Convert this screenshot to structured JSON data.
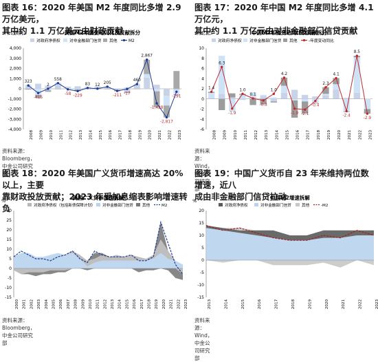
{
  "figures": [
    {
      "title_line1": "图表 16：2020 年美国 M2 年度同比多增 2.9 万亿美元，",
      "title_line2": "其中约 1.1 万亿美元由财政贡献",
      "source": "资料来源：Bloomberg，中金公司研究部"
    },
    {
      "title_line1": "图表 17：2020 年中国 M2 年度同比多增 4.1 万亿元，",
      "title_line2": "其中约 1.1 万亿元由对非金融部门信贷贡献",
      "source": "资料来源：Wind，中金公司研究部"
    },
    {
      "title_line1": "图表 18：2020 年美国广义货币增速高达 20%以上，主要",
      "title_line2": "靠财政投放贡献；2023 年受加息缩表影响增速转负",
      "source": "资料来源：Bloomberg，中金公司研究部"
    },
    {
      "title_line1": "图表 19：中国广义货币自 23 年来维持两位数增速，近八",
      "title_line2": "成由非金融部门信贷拉动",
      "source": "资料来源：Wind，中金公司研究部"
    }
  ],
  "chart_data": [
    {
      "type": "bar",
      "title": "美国M2年度变动同比及贡献拆分",
      "unit": "（十亿美元）",
      "categories": [
        "2008",
        "2009",
        "2010",
        "2011",
        "2012",
        "2013",
        "2014",
        "2015",
        "2016",
        "2017",
        "2018",
        "2019",
        "2020",
        "2021",
        "2022",
        "2023"
      ],
      "series": [
        {
          "name": "对政府净债权",
          "values": [
            250,
            500,
            300,
            350,
            80,
            250,
            100,
            200,
            180,
            -100,
            -300,
            450,
            1100,
            400,
            -700,
            -150
          ]
        },
        {
          "name": "对非金融部门信贷",
          "values": [
            150,
            -600,
            -150,
            250,
            100,
            -50,
            100,
            50,
            30,
            0,
            150,
            50,
            350,
            -250,
            -950,
            -600
          ]
        },
        {
          "name": "其他",
          "values": [
            -80,
            -310,
            -148,
            -42,
            0,
            -200,
            -37,
            -45,
            -47,
            -150,
            -119,
            -40,
            1417,
            -1578,
            -1167,
            1750
          ]
        },
        {
          "name": "M2",
          "values": [
            323,
            -415,
            2,
            558,
            -58,
            -229,
            83,
            12,
            205,
            -211,
            -17,
            460,
            2867,
            -1428,
            -2817,
            -291
          ]
        }
      ],
      "data_labels": [
        "323",
        "-415",
        "2",
        "558",
        "-58",
        "-229",
        "83",
        "12",
        "205",
        "-211",
        "-17",
        "460",
        "2,867",
        "-1,428",
        "-2,817",
        "-291"
      ],
      "ylim": [
        -4000,
        4000
      ],
      "yticks": [
        "4,000",
        "3,000",
        "2,000",
        "1,000",
        "0",
        "-1,000",
        "-2,000",
        "-3,000",
        "-4,000"
      ],
      "colors": {
        "gov": "#c8d3e8",
        "credit": "#cfe3f7",
        "other": "#a8a8a8",
        "m2": "#1f3a93"
      },
      "grid": false,
      "legend": "top"
    },
    {
      "type": "bar",
      "title": "中国M2年度变动同比及贡献拆分",
      "unit": "（万亿元）",
      "categories": [
        "2008",
        "2009",
        "2010",
        "2011",
        "2012",
        "2013",
        "2014",
        "2015",
        "2016",
        "2017",
        "2018",
        "2019",
        "2020",
        "2021",
        "2022",
        "2023"
      ],
      "series": [
        {
          "name": "对政府净债权",
          "values": [
            0.2,
            1.0,
            0.3,
            -0.2,
            0.4,
            0.6,
            -0.5,
            1.2,
            1.8,
            0.8,
            0.5,
            0.7,
            1.8,
            0.2,
            1.2,
            0.0
          ]
        },
        {
          "name": "对非金融部门信贷",
          "values": [
            1.0,
            7.5,
            -2.5,
            0.8,
            0.9,
            0.2,
            0.3,
            1.4,
            -0.3,
            -0.5,
            -0.8,
            0.3,
            1.1,
            -2.5,
            7.0,
            -2.0
          ]
        },
        {
          "name": "其他",
          "values": [
            0.2,
            -2.2,
            0.8,
            0.2,
            -1.2,
            -1.1,
            -0.2,
            1.6,
            -3.4,
            -2.4,
            -0.1,
            1.3,
            1.2,
            -0.1,
            0.3,
            -0.9
          ]
        },
        {
          "name": "-年度变动同比",
          "values": [
            1.4,
            6.3,
            -1.9,
            1.0,
            0.1,
            -0.3,
            1.0,
            4.2,
            -1.9,
            -2.1,
            -0.4,
            2.3,
            4.1,
            -2.4,
            8.5,
            -2.9
          ]
        }
      ],
      "data_labels": [
        "1.4",
        "6.3",
        "-1.9",
        "1.0",
        "0.1",
        "-0.3",
        "1.0",
        "4.2",
        "-1.9",
        "-2.1",
        "-0.4",
        "2.3",
        "4.1",
        "-2.4",
        "8.5",
        "-2.9"
      ],
      "ylim": [
        -6,
        10
      ],
      "yticks": [
        "10",
        "8",
        "6",
        "4",
        "2",
        "0",
        "-2",
        "-4",
        "-6"
      ],
      "colors": {
        "gov": "#c8d3e8",
        "credit": "#cfe3f7",
        "other": "#9c9c9c",
        "m2": "#c0282d"
      },
      "grid": false,
      "legend": "top"
    },
    {
      "type": "area",
      "title": "美国广义货币增速拆解",
      "unit": "%",
      "x_labels": [
        "2000",
        "2001",
        "2002",
        "2003",
        "2004",
        "2005",
        "2006",
        "2007",
        "2008",
        "2009",
        "2010",
        "2011",
        "2012",
        "2013",
        "2014",
        "2015",
        "2016",
        "2017",
        "2018",
        "2019",
        "2020",
        "2021",
        "2022",
        "2023"
      ],
      "series": [
        {
          "name": "对政府净债权（包括新债保障计划）",
          "values": [
            -1,
            -3,
            -2,
            -2,
            -2,
            -1,
            -1,
            -1,
            1,
            2,
            3,
            2,
            3,
            2,
            3,
            2,
            3,
            2,
            1,
            2,
            7,
            4,
            0,
            -3
          ]
        },
        {
          "name": "对非金融部门信贷",
          "values": [
            6,
            8,
            8,
            6,
            6,
            7,
            8,
            7,
            8,
            5,
            1,
            3,
            4,
            4,
            4,
            4,
            4,
            4,
            4,
            5,
            8,
            5,
            4,
            2
          ]
        },
        {
          "name": "其他",
          "values": [
            0,
            0,
            -1,
            -2,
            -1,
            -2,
            -1,
            -1,
            0,
            0,
            -1,
            3,
            1,
            0,
            0,
            0,
            0,
            -2,
            -1,
            -1,
            9,
            -1,
            -5,
            -3
          ]
        },
        {
          "name": "M2",
          "values": [
            6,
            9,
            7,
            5,
            5,
            4,
            6,
            7,
            9,
            5,
            3,
            9,
            7,
            6,
            6,
            6,
            7,
            4,
            4,
            6,
            24,
            13,
            2,
            -3
          ]
        }
      ],
      "ylim": [
        -15,
        30
      ],
      "yticks": [
        "30",
        "25",
        "20",
        "15",
        "10",
        "5",
        "0",
        "-5",
        "-10",
        "-15"
      ],
      "colors": {
        "gov": "#b7b7b7",
        "credit": "#b9d3ee",
        "other": "#7a7a7a",
        "m2": "#1f3a93"
      },
      "grid": false,
      "legend": "top"
    },
    {
      "type": "area",
      "title": "中国M2增速拆解",
      "unit": "%",
      "x_labels": [
        "2013",
        "2014",
        "2015",
        "2016",
        "2017",
        "2018",
        "2019",
        "2020",
        "2021",
        "2022",
        "2023"
      ],
      "series": [
        {
          "name": "对政府净债权",
          "values": [
            1,
            1,
            1,
            2,
            3,
            2,
            2,
            3,
            3,
            2,
            2
          ]
        },
        {
          "name": "对非金融部门信贷",
          "values": [
            13,
            12,
            11,
            10,
            9,
            8,
            8,
            9,
            9,
            10,
            10
          ]
        },
        {
          "name": "其他",
          "values": [
            0,
            -1,
            1,
            0,
            -2,
            -2,
            -2,
            -1,
            -3,
            0,
            -2
          ]
        },
        {
          "name": "-M2",
          "values": [
            14,
            12,
            13,
            11,
            9,
            8,
            8,
            10,
            9,
            12,
            10
          ]
        }
      ],
      "ylim": [
        -15,
        20
      ],
      "yticks": [
        "20",
        "15",
        "10",
        "5",
        "0",
        "-5",
        "-10",
        "-15"
      ],
      "colors": {
        "gov": "#5a5a5a",
        "credit": "#b9d3ee",
        "other": "#c8c8c8",
        "m2": "#a01f24"
      },
      "grid": false,
      "legend": "top"
    }
  ]
}
